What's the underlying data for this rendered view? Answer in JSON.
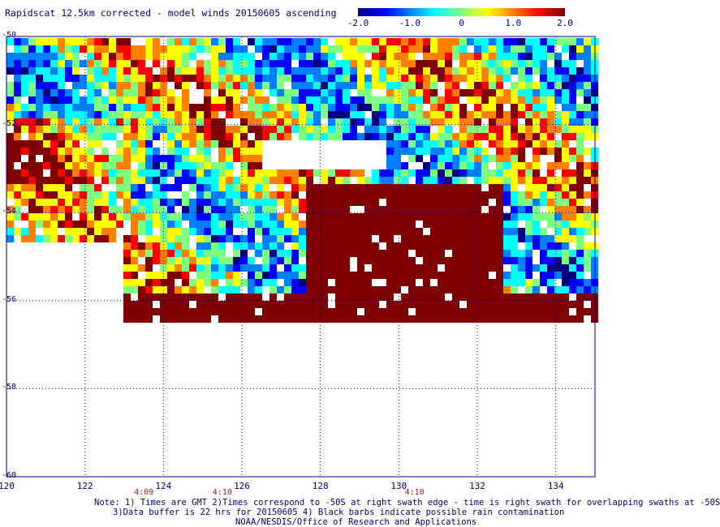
{
  "title": "Rapidscat 12.5km corrected - model winds 20150605 ascending",
  "colorbar": {
    "tick_labels": [
      "-2.0",
      "-1.0",
      "0",
      "1.0",
      "2.0"
    ],
    "tick_values": [
      -2.0,
      -1.0,
      0,
      1.0,
      2.0
    ],
    "colors": [
      "#00007f",
      "#0000ff",
      "#007fff",
      "#00ffff",
      "#7fff7f",
      "#ffff00",
      "#ff7f00",
      "#ff0000",
      "#7f0000"
    ]
  },
  "map": {
    "lon_range": [
      120,
      135
    ],
    "lat_range": [
      -60,
      -50
    ],
    "lon_ticks": [
      "120",
      "122",
      "124",
      "126",
      "128",
      "130",
      "132",
      "134"
    ],
    "lat_ticks": [
      "-50",
      "-52",
      "-54",
      "-56",
      "-58",
      "-60"
    ],
    "time_labels": [
      {
        "lon": 123.5,
        "text": "4:09"
      },
      {
        "lon": 125.5,
        "text": "4:10"
      },
      {
        "lon": 130.4,
        "text": "4:10"
      }
    ],
    "gridlines": "dotted",
    "swath": {
      "description_range": "wind speed difference, clipped -2.0 to 2.0",
      "lat_rows": [
        -50.0,
        -52.0,
        -54.0,
        -55.6,
        -56.3
      ],
      "west_edge_lon": [
        120.0,
        120.0,
        120.0,
        122.8,
        122.8
      ],
      "east_edge_lon": [
        135.0,
        135.0,
        135.0,
        135.0,
        134.8
      ]
    }
  },
  "notes": [
    "Note: 1) Times are GMT 2)Times correspond to -50S at right swath edge - time is right swath for overlapping swaths at -50S",
    "3)Data buffer is 22 hrs for 20150605 4) Black barbs indicate possible rain contamination",
    "NOAA/NESDIS/Office of Research and Applications"
  ]
}
